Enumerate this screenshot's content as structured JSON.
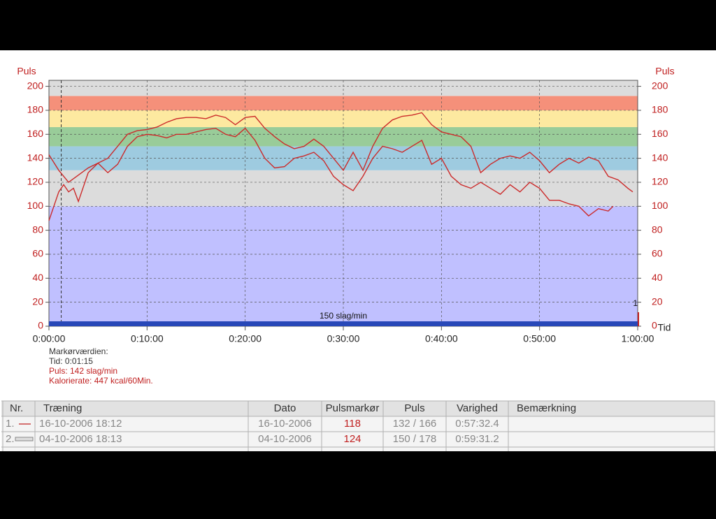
{
  "chart_data": {
    "type": "line",
    "y_label": "Puls",
    "y2_label": "Puls",
    "x_label": "Tid",
    "xlim": [
      0,
      60
    ],
    "xticks": [
      {
        "value": 0,
        "label": "0:00:00"
      },
      {
        "value": 10,
        "label": "0:10:00"
      },
      {
        "value": 20,
        "label": "0:20:00"
      },
      {
        "value": 30,
        "label": "0:30:00"
      },
      {
        "value": 40,
        "label": "0:40:00"
      },
      {
        "value": 50,
        "label": "0:50:00"
      },
      {
        "value": 60,
        "label": "1:00:00"
      }
    ],
    "ylim": [
      0,
      205
    ],
    "yticks": [
      0,
      20,
      40,
      60,
      80,
      100,
      120,
      140,
      160,
      180,
      200
    ],
    "grid": true,
    "zones": [
      {
        "from": 0,
        "to": 100,
        "color": "#c0c0ff"
      },
      {
        "from": 100,
        "to": 130,
        "color": "#dcdcdc"
      },
      {
        "from": 130,
        "to": 150,
        "color": "#9ecbe0"
      },
      {
        "from": 150,
        "to": 166,
        "color": "#99cc99"
      },
      {
        "from": 166,
        "to": 180,
        "color": "#fde9a0"
      },
      {
        "from": 180,
        "to": 192,
        "color": "#f5907a"
      },
      {
        "from": 192,
        "to": 205,
        "color": "#dcdcdc"
      }
    ],
    "baseline_label": "150 slag/min",
    "marker_x": 1.25,
    "end_label": "1",
    "series": [
      {
        "name": "16-10-2006 18:12",
        "color": "#cc2a2a",
        "x": [
          0,
          0.5,
          1,
          1.5,
          2,
          2.5,
          3,
          4,
          5,
          6,
          7,
          8,
          9,
          10,
          11,
          12,
          13,
          14,
          15,
          16,
          17,
          18,
          19,
          20,
          21,
          22,
          23,
          24,
          25,
          26,
          27,
          28,
          29,
          30,
          31,
          32,
          33,
          34,
          35,
          36,
          37,
          38,
          39,
          40,
          41,
          42,
          43,
          44,
          45,
          46,
          47,
          48,
          49,
          50,
          51,
          52,
          53,
          54,
          55,
          56,
          57,
          57.5
        ],
        "values": [
          88,
          100,
          112,
          118,
          112,
          115,
          104,
          128,
          136,
          128,
          135,
          150,
          158,
          160,
          159,
          157,
          160,
          160,
          162,
          164,
          165,
          160,
          158,
          165,
          155,
          140,
          132,
          133,
          140,
          142,
          145,
          138,
          125,
          118,
          113,
          125,
          140,
          150,
          148,
          145,
          150,
          155,
          135,
          140,
          125,
          118,
          115,
          120,
          115,
          110,
          118,
          112,
          120,
          115,
          105,
          105,
          102,
          100,
          92,
          98,
          96,
          100
        ]
      },
      {
        "name": "04-10-2006 18:13",
        "color": "#cc2a2a",
        "x": [
          0,
          1,
          2,
          3,
          4,
          5,
          6,
          7,
          8,
          9,
          10,
          11,
          12,
          13,
          14,
          15,
          16,
          17,
          18,
          19,
          20,
          21,
          22,
          23,
          24,
          25,
          26,
          27,
          28,
          29,
          30,
          31,
          32,
          33,
          34,
          35,
          36,
          37,
          38,
          39,
          40,
          41,
          42,
          43,
          44,
          45,
          46,
          47,
          48,
          49,
          50,
          51,
          52,
          53,
          54,
          55,
          56,
          57,
          58,
          59,
          59.5
        ],
        "values": [
          143,
          130,
          120,
          126,
          132,
          136,
          140,
          150,
          160,
          163,
          164,
          166,
          170,
          173,
          174,
          174,
          173,
          176,
          174,
          168,
          174,
          175,
          165,
          158,
          152,
          148,
          150,
          156,
          150,
          140,
          130,
          145,
          130,
          150,
          165,
          172,
          175,
          176,
          178,
          168,
          162,
          160,
          158,
          150,
          128,
          135,
          140,
          142,
          140,
          145,
          138,
          128,
          135,
          140,
          136,
          141,
          138,
          125,
          122,
          115,
          112
        ]
      }
    ]
  },
  "marker_info": {
    "title": "Markørværdien:",
    "time": "Tid: 0:01:15",
    "pulse": "Puls: 142 slag/min",
    "calories": "Kalorierate: 447 kcal/60Min."
  },
  "table": {
    "columns": [
      "Nr.",
      "Træning",
      "Dato",
      "Pulsmarkør",
      "Puls",
      "Varighed",
      "Bemærkning"
    ],
    "rows": [
      [
        "1.",
        "16-10-2006 18:12",
        "16-10-2006",
        "118",
        "132 / 166",
        "0:57:32.4",
        ""
      ],
      [
        "2.",
        "04-10-2006 18:13",
        "04-10-2006",
        "124",
        "150 / 178",
        "0:59:31.2",
        ""
      ]
    ]
  }
}
